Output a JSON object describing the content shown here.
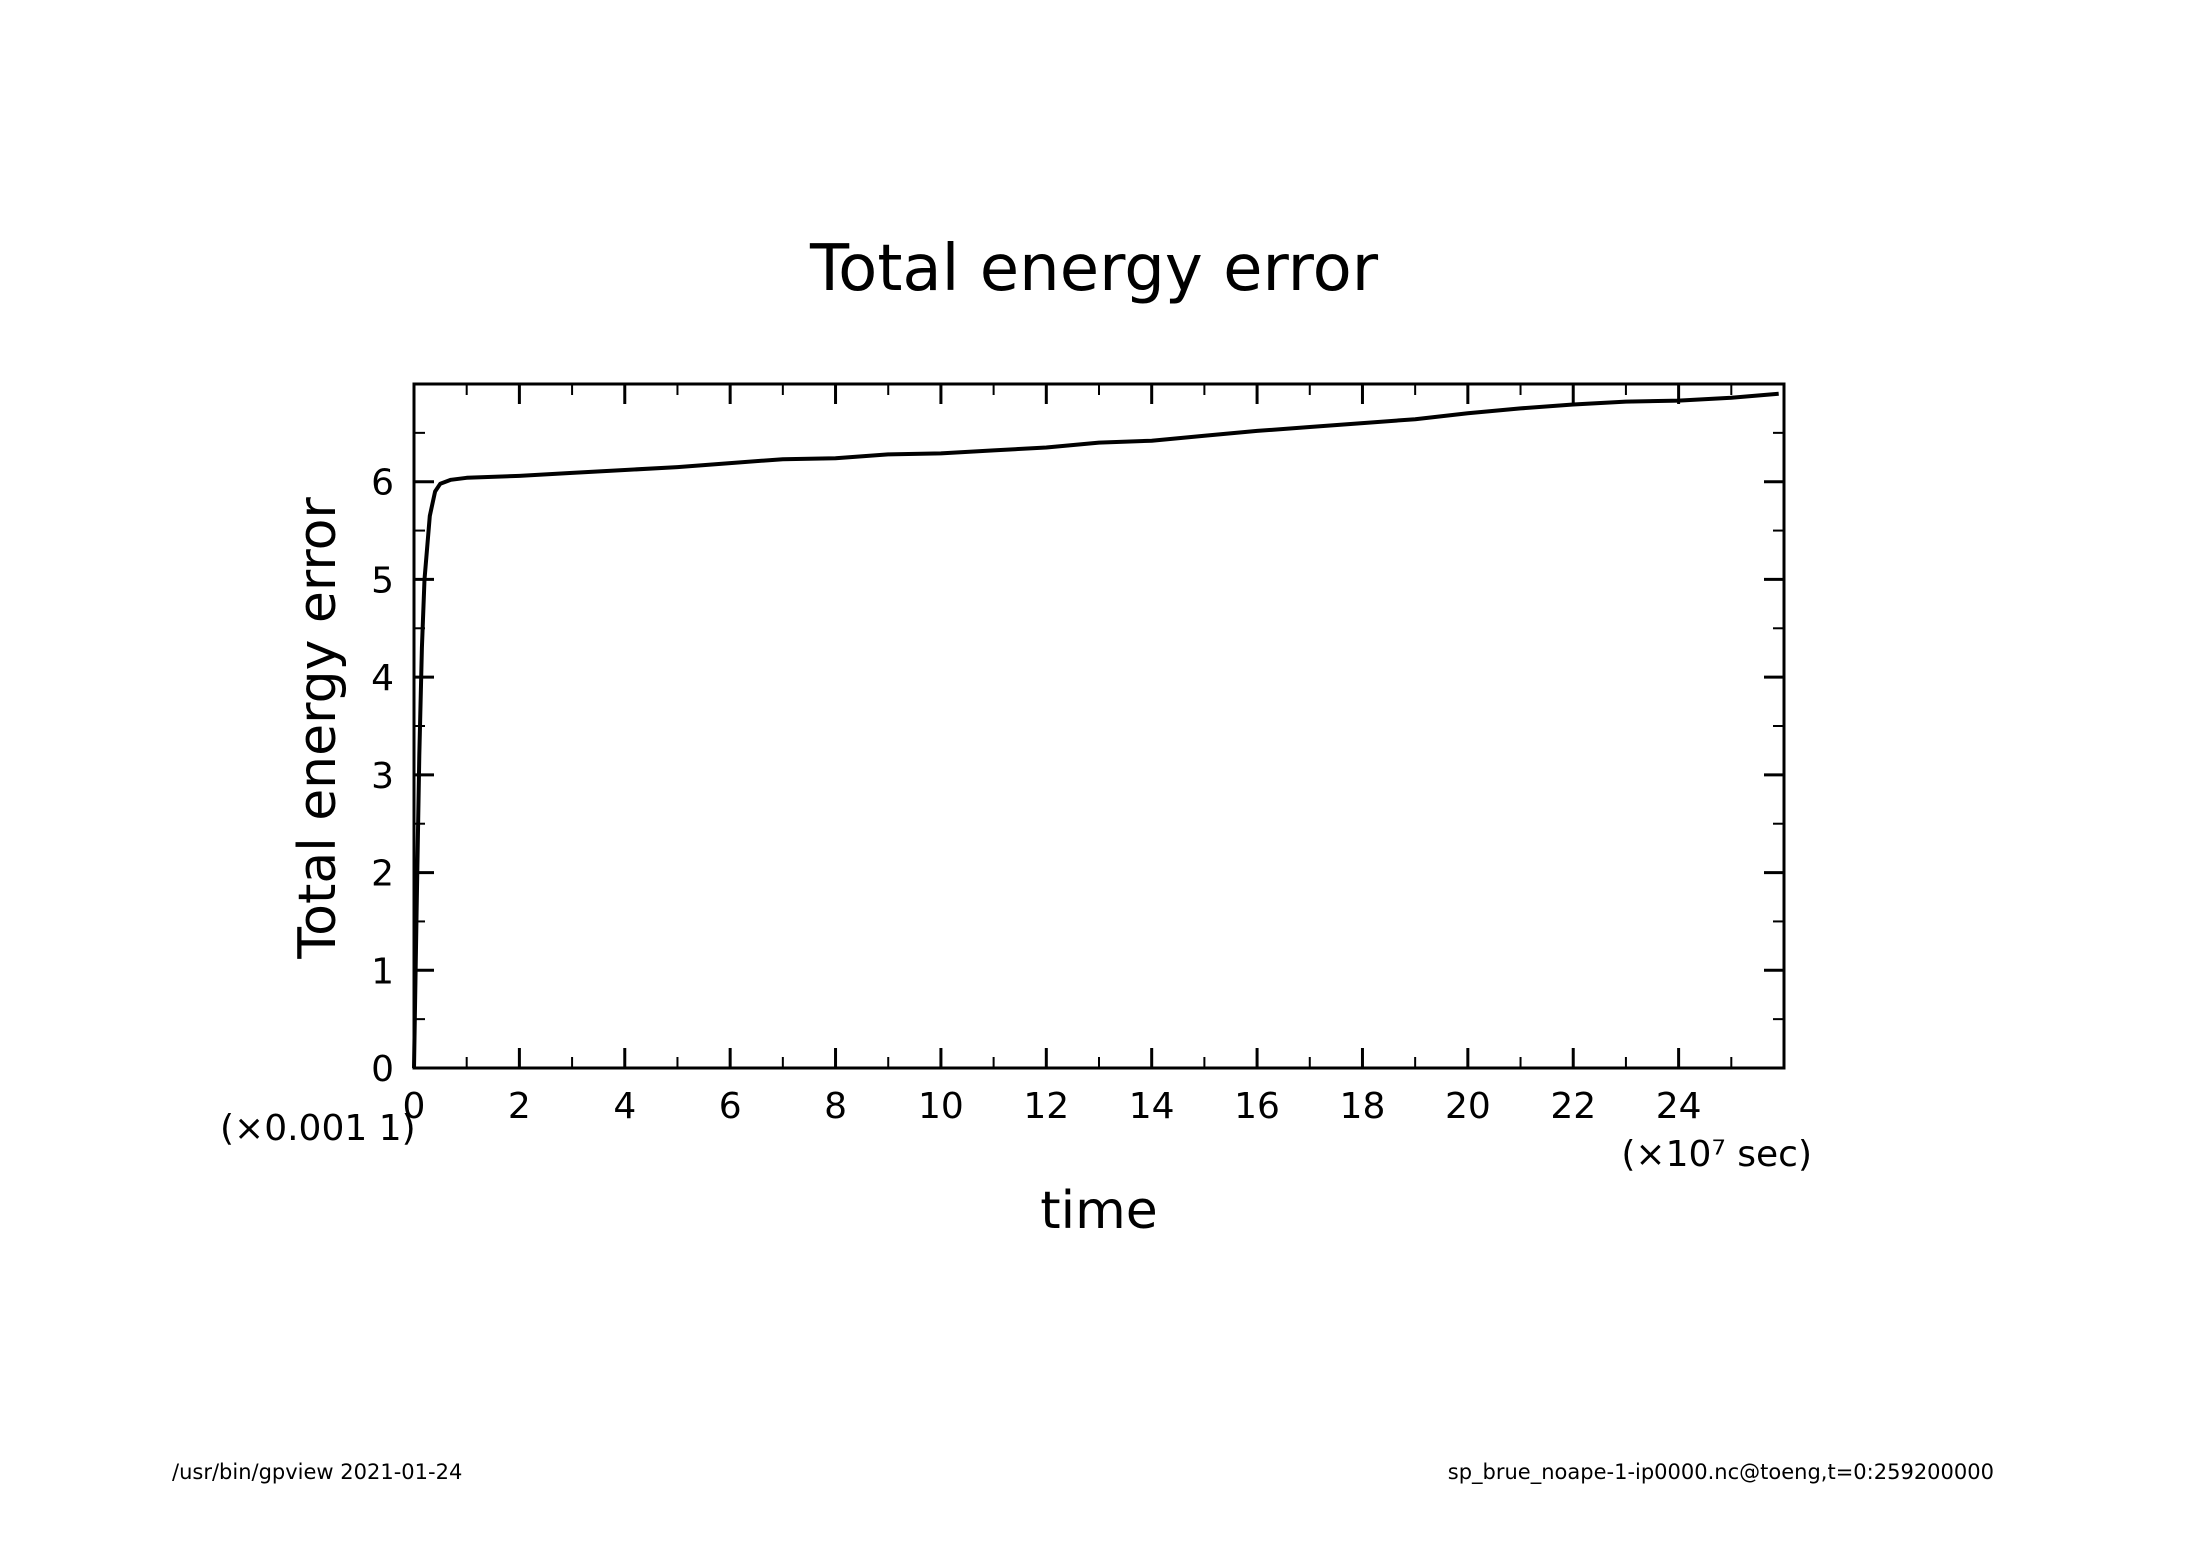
{
  "chart_data": {
    "type": "line",
    "title": "Total energy error",
    "xlabel": "time",
    "ylabel": "Total energy error",
    "x_scale_label": "(×10⁷ sec)",
    "y_scale_label": "(×0.001  1)",
    "xlim": [
      0,
      26
    ],
    "ylim": [
      0,
      7
    ],
    "x_ticks": [
      0,
      2,
      4,
      6,
      8,
      10,
      12,
      14,
      16,
      18,
      20,
      22,
      24
    ],
    "y_ticks": [
      0,
      1,
      2,
      3,
      4,
      5,
      6
    ],
    "x_tick_labels": [
      "0",
      "2",
      "4",
      "6",
      "8",
      "10",
      "12",
      "14",
      "16",
      "18",
      "20",
      "22",
      "24"
    ],
    "y_tick_labels": [
      "0",
      "1",
      "2",
      "3",
      "4",
      "5",
      "6"
    ],
    "grid": false,
    "series": [
      {
        "x": [
          0,
          0.05,
          0.1,
          0.15,
          0.2,
          0.3,
          0.4,
          0.5,
          0.7,
          1,
          2,
          3,
          4,
          5,
          6,
          7,
          8,
          9,
          10,
          11,
          12,
          13,
          14,
          15,
          16,
          17,
          18,
          19,
          20,
          21,
          22,
          23,
          24,
          25,
          25.9
        ],
        "values": [
          0,
          1.6,
          3.2,
          4.3,
          5.0,
          5.65,
          5.9,
          5.98,
          6.02,
          6.04,
          6.06,
          6.09,
          6.12,
          6.15,
          6.19,
          6.23,
          6.24,
          6.28,
          6.29,
          6.32,
          6.35,
          6.4,
          6.42,
          6.47,
          6.52,
          6.56,
          6.6,
          6.64,
          6.7,
          6.75,
          6.79,
          6.82,
          6.83,
          6.86,
          6.9
        ]
      }
    ]
  },
  "footer": {
    "left": "/usr/bin/gpview   2021-01-24",
    "right": "sp_brue_noape-1-ip0000.nc@toeng,t=0:259200000"
  }
}
